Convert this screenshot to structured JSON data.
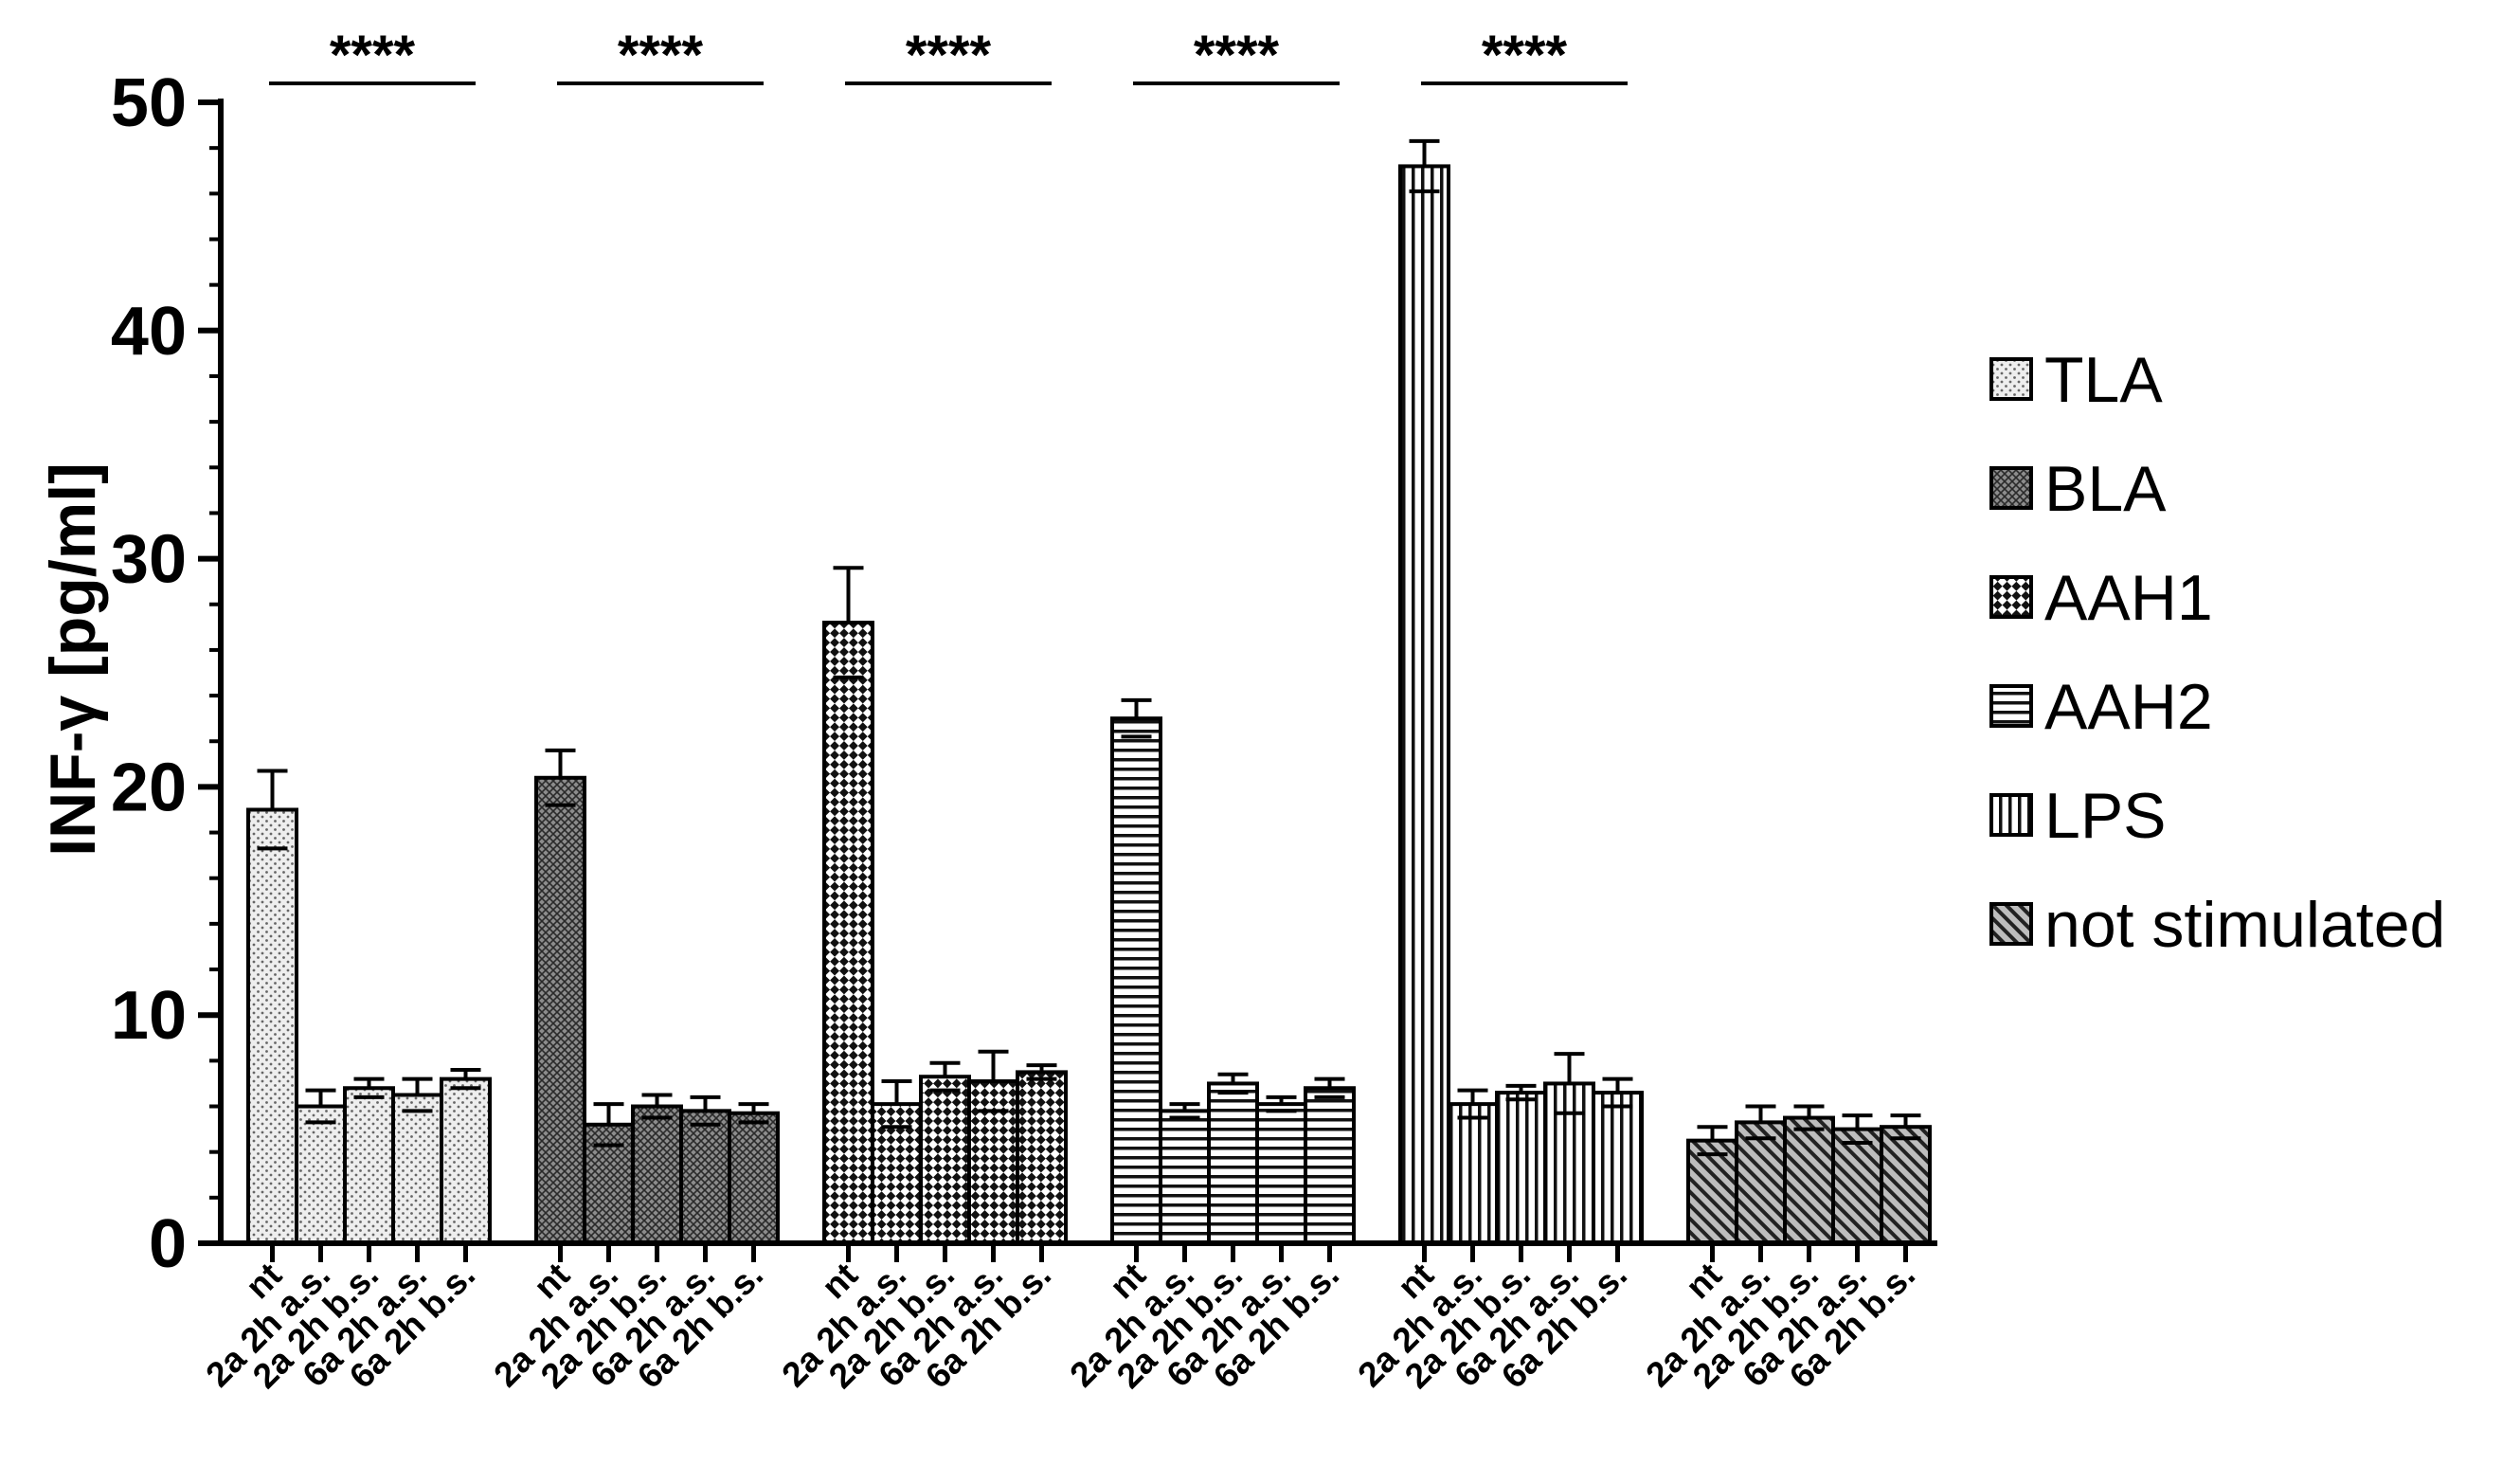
{
  "chart_data": {
    "type": "bar",
    "title": "",
    "xlabel": "",
    "ylabel": "INF-γ [pg/ml]",
    "ylim": [
      0,
      50
    ],
    "yticks": [
      0,
      10,
      20,
      30,
      40,
      50
    ],
    "grid": false,
    "legend_position": "right",
    "categories": [
      "nt",
      "2a 2h a.s.",
      "2a 2h b.s.",
      "6a 2h a.s.",
      "6a 2h b.s."
    ],
    "significance_label": "****",
    "series": [
      {
        "name": "TLA",
        "pattern": "dots",
        "color": "#e6e6e6",
        "values": [
          19.0,
          6.0,
          6.8,
          6.5,
          7.2
        ],
        "errors": [
          1.7,
          0.7,
          0.4,
          0.7,
          0.4
        ],
        "significance": true
      },
      {
        "name": "BLA",
        "pattern": "dense-crosshatch",
        "color": "#7a7a7a",
        "values": [
          20.4,
          5.2,
          6.0,
          5.8,
          5.7
        ],
        "errors": [
          1.2,
          0.9,
          0.5,
          0.6,
          0.4
        ],
        "significance": true
      },
      {
        "name": "AAH1",
        "pattern": "checkerboard",
        "color": "#ffffff",
        "values": [
          27.2,
          6.1,
          7.3,
          7.1,
          7.5
        ],
        "errors": [
          2.4,
          1.0,
          0.6,
          1.3,
          0.3
        ],
        "significance": true
      },
      {
        "name": "AAH2",
        "pattern": "horizontal-lines",
        "color": "#ffffff",
        "values": [
          23.0,
          5.8,
          7.0,
          6.1,
          6.8
        ],
        "errors": [
          0.8,
          0.3,
          0.4,
          0.3,
          0.4
        ],
        "significance": true
      },
      {
        "name": "LPS",
        "pattern": "vertical-lines",
        "color": "#ffffff",
        "values": [
          47.2,
          6.1,
          6.6,
          7.0,
          6.6
        ],
        "errors": [
          1.1,
          0.6,
          0.3,
          1.3,
          0.6
        ],
        "significance": true
      },
      {
        "name": "not stimulated",
        "pattern": "diagonal-lines",
        "color": "#9a9a9a",
        "values": [
          4.5,
          5.3,
          5.5,
          5.0,
          5.1
        ],
        "errors": [
          0.6,
          0.7,
          0.5,
          0.6,
          0.5
        ],
        "significance": false
      }
    ]
  }
}
